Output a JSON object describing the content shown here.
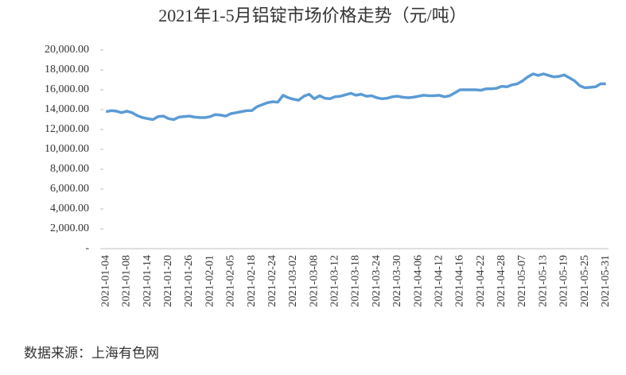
{
  "chart_data": {
    "type": "line",
    "title": "2021年1-5月铝锭市场价格走势（元/吨）",
    "source": "数据来源：上海有色网",
    "categories": [
      "2021-01-04",
      null,
      null,
      null,
      "2021-01-08",
      null,
      null,
      null,
      "2021-01-14",
      null,
      null,
      null,
      "2021-01-20",
      null,
      null,
      null,
      "2021-01-26",
      null,
      null,
      null,
      "2021-02-01",
      null,
      null,
      null,
      "2021-02-05",
      null,
      null,
      null,
      "2021-02-18",
      null,
      null,
      null,
      "2021-02-24",
      null,
      null,
      null,
      "2021-03-02",
      null,
      null,
      null,
      "2021-03-08",
      null,
      null,
      null,
      "2021-03-12",
      null,
      null,
      null,
      "2021-03-18",
      null,
      null,
      null,
      "2021-03-24",
      null,
      null,
      null,
      "2021-03-30",
      null,
      null,
      null,
      "2021-04-06",
      null,
      null,
      null,
      "2021-04-12",
      null,
      null,
      null,
      "2021-04-16",
      null,
      null,
      null,
      "2021-04-22",
      null,
      null,
      null,
      "2021-04-28",
      null,
      null,
      null,
      "2021-05-07",
      null,
      null,
      null,
      "2021-05-13",
      null,
      null,
      null,
      "2021-05-19",
      null,
      null,
      null,
      "2021-05-25",
      null,
      null,
      null,
      "2021-05-31"
    ],
    "series": [
      {
        "color": "#5b9bd5",
        "values": [
          13800,
          13900,
          13850,
          13700,
          13850,
          13700,
          13400,
          13200,
          13100,
          13000,
          13300,
          13350,
          13100,
          13000,
          13250,
          13300,
          13350,
          13250,
          13200,
          13200,
          13300,
          13500,
          13450,
          13350,
          13600,
          13700,
          13800,
          13900,
          13900,
          14300,
          14500,
          14700,
          14800,
          14750,
          15450,
          15200,
          15050,
          14950,
          15350,
          15550,
          15100,
          15400,
          15150,
          15100,
          15300,
          15350,
          15500,
          15650,
          15450,
          15550,
          15350,
          15400,
          15200,
          15100,
          15150,
          15300,
          15350,
          15250,
          15200,
          15250,
          15350,
          15450,
          15400,
          15400,
          15450,
          15300,
          15400,
          15700,
          16000,
          16000,
          16000,
          16000,
          15950,
          16100,
          16100,
          16150,
          16350,
          16300,
          16500,
          16600,
          16900,
          17300,
          17600,
          17450,
          17600,
          17450,
          17300,
          17350,
          17500,
          17200,
          16900,
          16400,
          16200,
          16250,
          16300,
          16600,
          16600
        ]
      }
    ],
    "ylim": [
      0,
      20000
    ],
    "yticks": [
      {
        "value": 0,
        "label": "-"
      },
      {
        "value": 2000,
        "label": "2,000.00"
      },
      {
        "value": 4000,
        "label": "4,000.00"
      },
      {
        "value": 6000,
        "label": "6,000.00"
      },
      {
        "value": 8000,
        "label": "8,000.00"
      },
      {
        "value": 10000,
        "label": "10,000.00"
      },
      {
        "value": 12000,
        "label": "12,000.00"
      },
      {
        "value": 14000,
        "label": "14,000.00"
      },
      {
        "value": 16000,
        "label": "16,000.00"
      },
      {
        "value": 18000,
        "label": "18,000.00"
      },
      {
        "value": 20000,
        "label": "20,000.00"
      }
    ]
  }
}
